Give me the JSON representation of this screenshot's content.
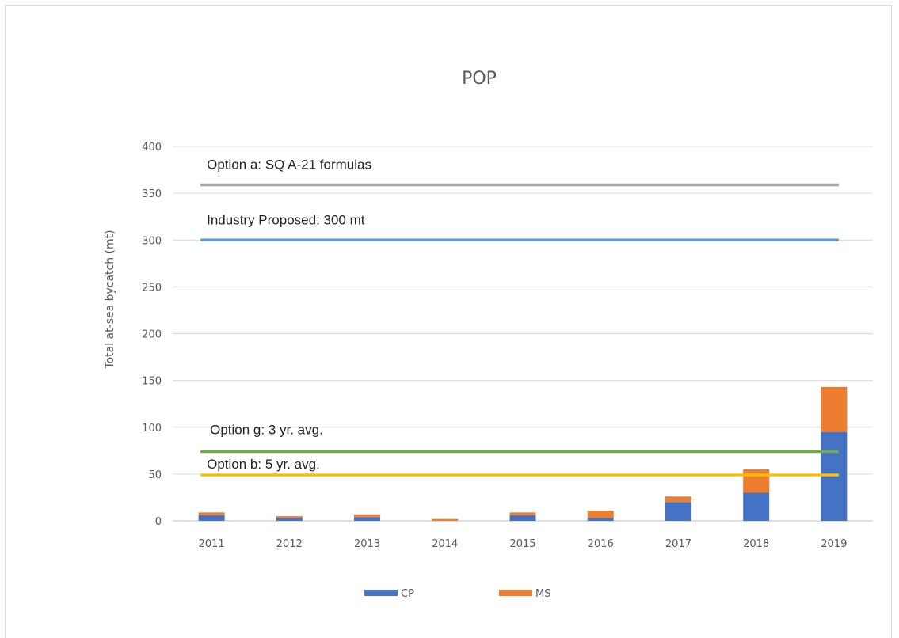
{
  "chart_data": {
    "type": "bar",
    "stacked": true,
    "title": "POP",
    "xlabel": "",
    "ylabel": "Total at-sea bycatch (mt)",
    "ylim": [
      0,
      400
    ],
    "yticks": [
      0,
      50,
      100,
      150,
      200,
      250,
      300,
      350,
      400
    ],
    "grid": true,
    "legend_position": "bottom",
    "categories": [
      "2011",
      "2012",
      "2013",
      "2014",
      "2015",
      "2016",
      "2017",
      "2018",
      "2019"
    ],
    "series": [
      {
        "name": "CP",
        "color": "#4472c4",
        "values": [
          6,
          3,
          4,
          0,
          6,
          3,
          20,
          30,
          95
        ]
      },
      {
        "name": "MS",
        "color": "#ed7d31",
        "values": [
          3,
          2,
          3,
          2,
          3,
          8,
          6,
          25,
          48
        ]
      }
    ],
    "reference_lines": [
      {
        "label": "Option a: SQ A-21 formulas",
        "value": 359,
        "color": "#a5a5a5"
      },
      {
        "label": "Industry Proposed: 300 mt",
        "value": 300,
        "color": "#5b9bd5"
      },
      {
        "label": "Option g: 3 yr. avg.",
        "value": 74,
        "color": "#70ad47"
      },
      {
        "label": "Option b: 5 yr. avg.",
        "value": 49,
        "color": "#ffc000"
      }
    ]
  }
}
